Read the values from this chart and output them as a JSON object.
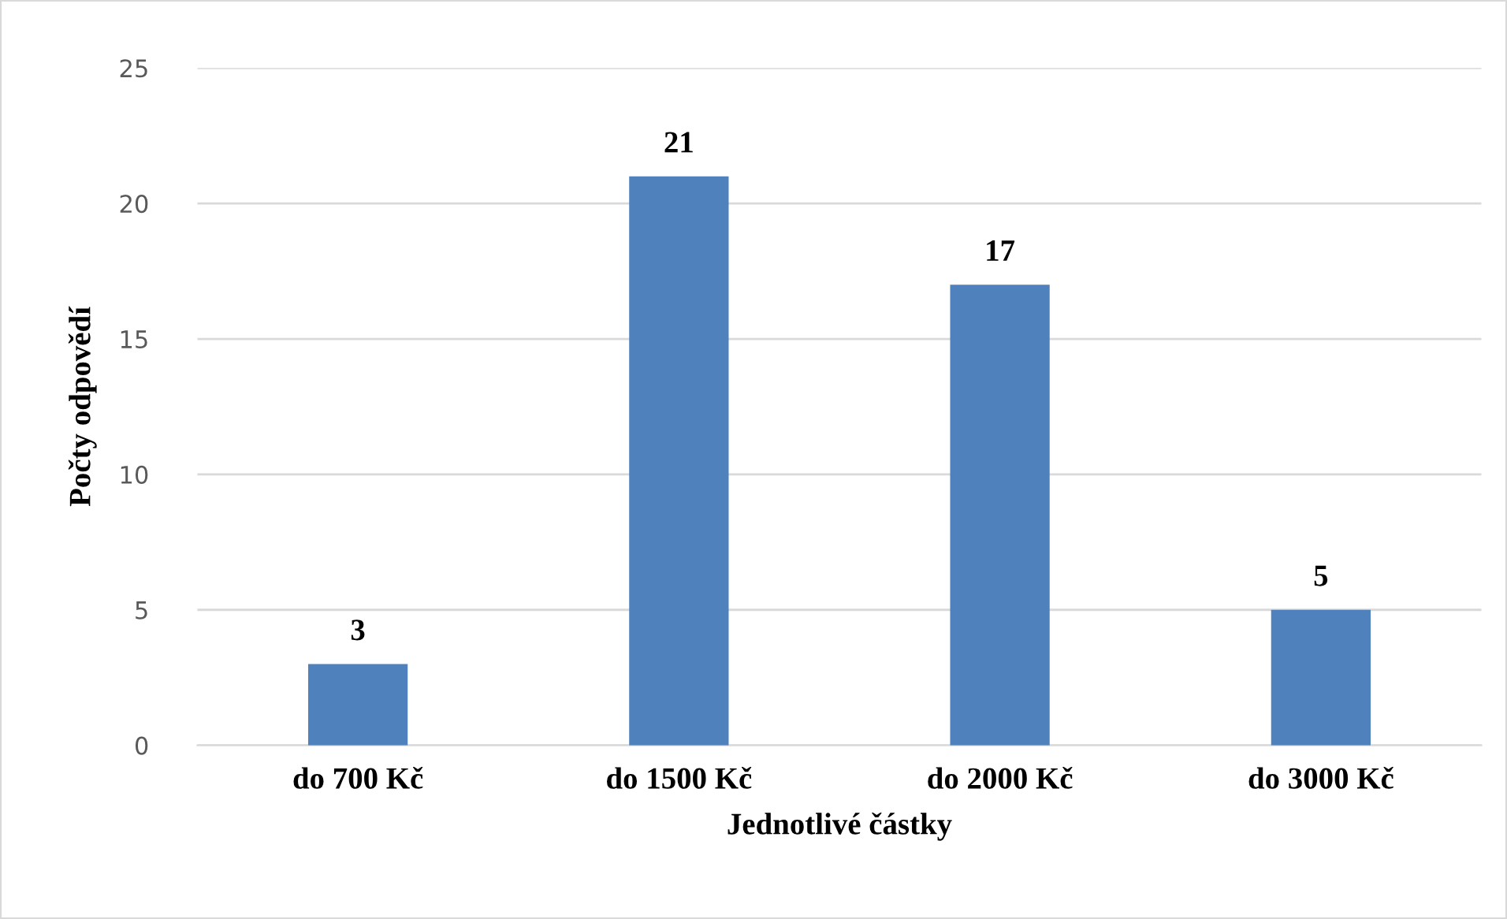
{
  "chart_data": {
    "type": "bar",
    "xlabel": "Jednotlivé částky",
    "ylabel": "Počty odpovědí",
    "categories": [
      "do 700 Kč",
      "do 1500 Kč",
      "do 2000 Kč",
      "do 3000 Kč"
    ],
    "values": [
      3,
      21,
      17,
      5
    ],
    "color": "#4f81bd",
    "ylim": [
      0,
      25
    ],
    "yticks": [
      0,
      5,
      10,
      15,
      20,
      25
    ],
    "grid": "y",
    "data_labels": true,
    "legend": false
  }
}
